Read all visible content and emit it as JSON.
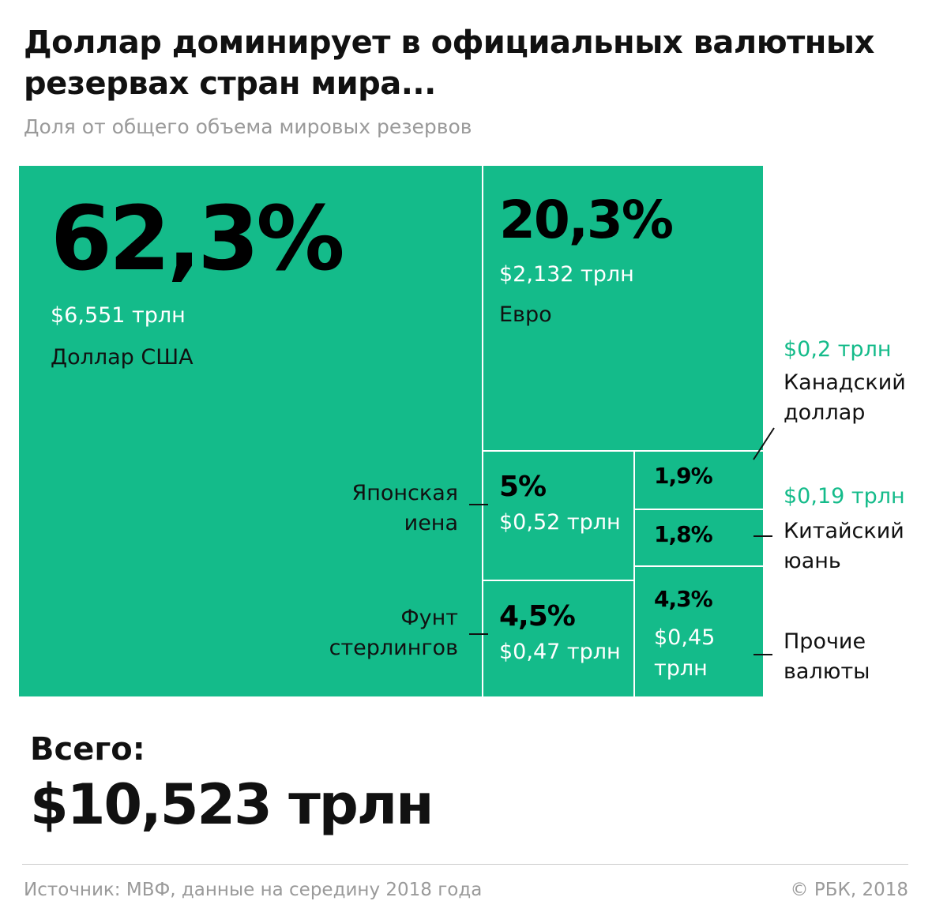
{
  "title": "Доллар доминирует в официальных валютных резервах стран мира...",
  "subtitle": "Доля от общего объема мировых резервов",
  "chart_data": {
    "type": "treemap",
    "title": "Доллар доминирует в официальных валютных резервах стран мира...",
    "unit": "%",
    "items": [
      {
        "name": "Доллар США",
        "pct": 62.3,
        "pct_label": "62,3%",
        "value_label": "$6,551 трлн"
      },
      {
        "name": "Евро",
        "pct": 20.3,
        "pct_label": "20,3%",
        "value_label": "$2,132 трлн"
      },
      {
        "name": "Японская иена",
        "pct": 5,
        "pct_label": "5%",
        "value_label": "$0,52 трлн"
      },
      {
        "name": "Фунт стерлингов",
        "pct": 4.5,
        "pct_label": "4,5%",
        "value_label": "$0,47 трлн"
      },
      {
        "name": "Канадский доллар",
        "pct": 1.9,
        "pct_label": "1,9%",
        "value_label": "$0,2 трлн"
      },
      {
        "name": "Китайский юань",
        "pct": 1.8,
        "pct_label": "1,8%",
        "value_label": "$0,19 трлн"
      },
      {
        "name": "Прочие валюты",
        "pct": 4.3,
        "pct_label": "4,3%",
        "value_label": "$0,45 трлн"
      }
    ],
    "color": "#14bb8a"
  },
  "total": {
    "label": "Всего:",
    "value": "$10,523 трлн"
  },
  "footer": {
    "source": "Источник: МВФ, данные на середину 2018 года",
    "copyright": "© РБК, 2018"
  }
}
